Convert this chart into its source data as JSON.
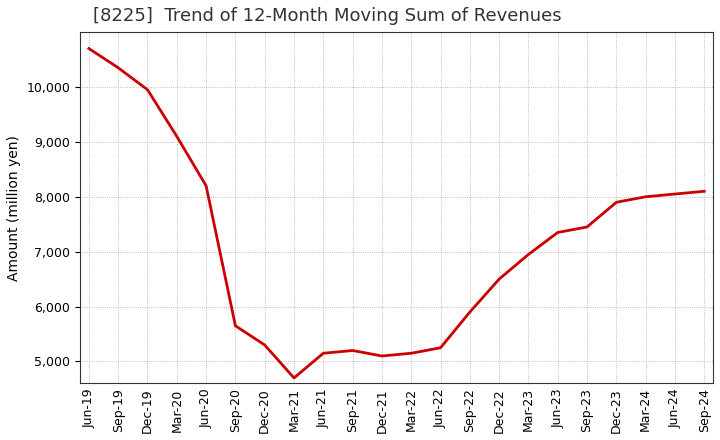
{
  "title": "[8225]  Trend of 12-Month Moving Sum of Revenues",
  "ylabel": "Amount (million yen)",
  "line_color": "#cc0000",
  "background_color": "#ffffff",
  "plot_bg_color": "#ffffff",
  "grid_color": "#aaaaaa",
  "x_labels": [
    "Jun-19",
    "Sep-19",
    "Dec-19",
    "Mar-20",
    "Jun-20",
    "Sep-20",
    "Dec-20",
    "Mar-21",
    "Jun-21",
    "Sep-21",
    "Dec-21",
    "Mar-22",
    "Jun-22",
    "Sep-22",
    "Dec-22",
    "Mar-23",
    "Jun-23",
    "Sep-23",
    "Dec-23",
    "Mar-24",
    "Jun-24",
    "Sep-24"
  ],
  "y_values": [
    10700,
    10350,
    9950,
    9100,
    8200,
    5650,
    5300,
    4700,
    5150,
    5200,
    5100,
    5150,
    5250,
    5900,
    6500,
    6950,
    7350,
    7450,
    7900,
    8000,
    8050,
    8100
  ],
  "ylim_min": 4700,
  "ylim_max": 11000,
  "yticks": [
    5000,
    6000,
    7000,
    8000,
    9000,
    10000
  ],
  "title_fontsize": 13,
  "axis_label_fontsize": 10,
  "tick_fontsize": 9
}
